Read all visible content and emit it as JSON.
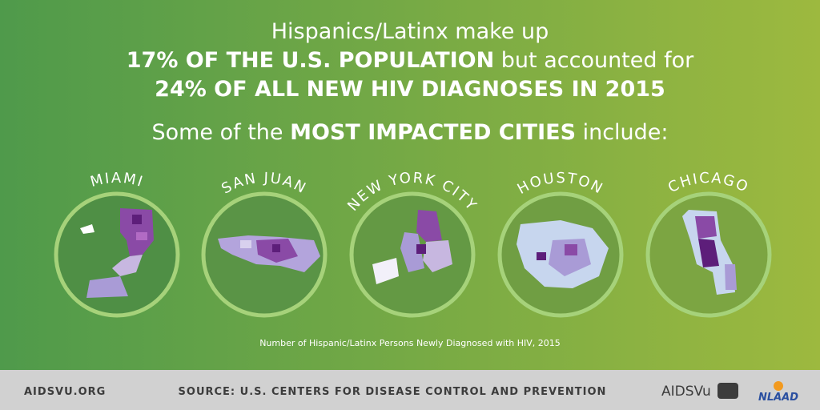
{
  "headline": {
    "line1": "Hispanics/Latinx make up",
    "line2_bold": "17% OF THE U.S. POPULATION",
    "line2_rest": " but accounted for",
    "line3_bold": "24% OF ALL NEW HIV DIAGNOSES IN 2015"
  },
  "subheading": {
    "before": "Some of the ",
    "bold": "MOST IMPACTED CITIES",
    "after": " include:"
  },
  "cities": [
    "MIAMI",
    "SAN JUAN",
    "NEW YORK CITY",
    "HOUSTON",
    "CHICAGO"
  ],
  "caption": "Number of Hispanic/Latinx Persons Newly Diagnosed with HIV, 2015",
  "footer": {
    "website": "AIDSVU.ORG",
    "source": "SOURCE: U.S. CENTERS FOR DISEASE CONTROL AND PREVENTION",
    "logo1": "AIDSVu",
    "logo2": "NLAAD"
  }
}
